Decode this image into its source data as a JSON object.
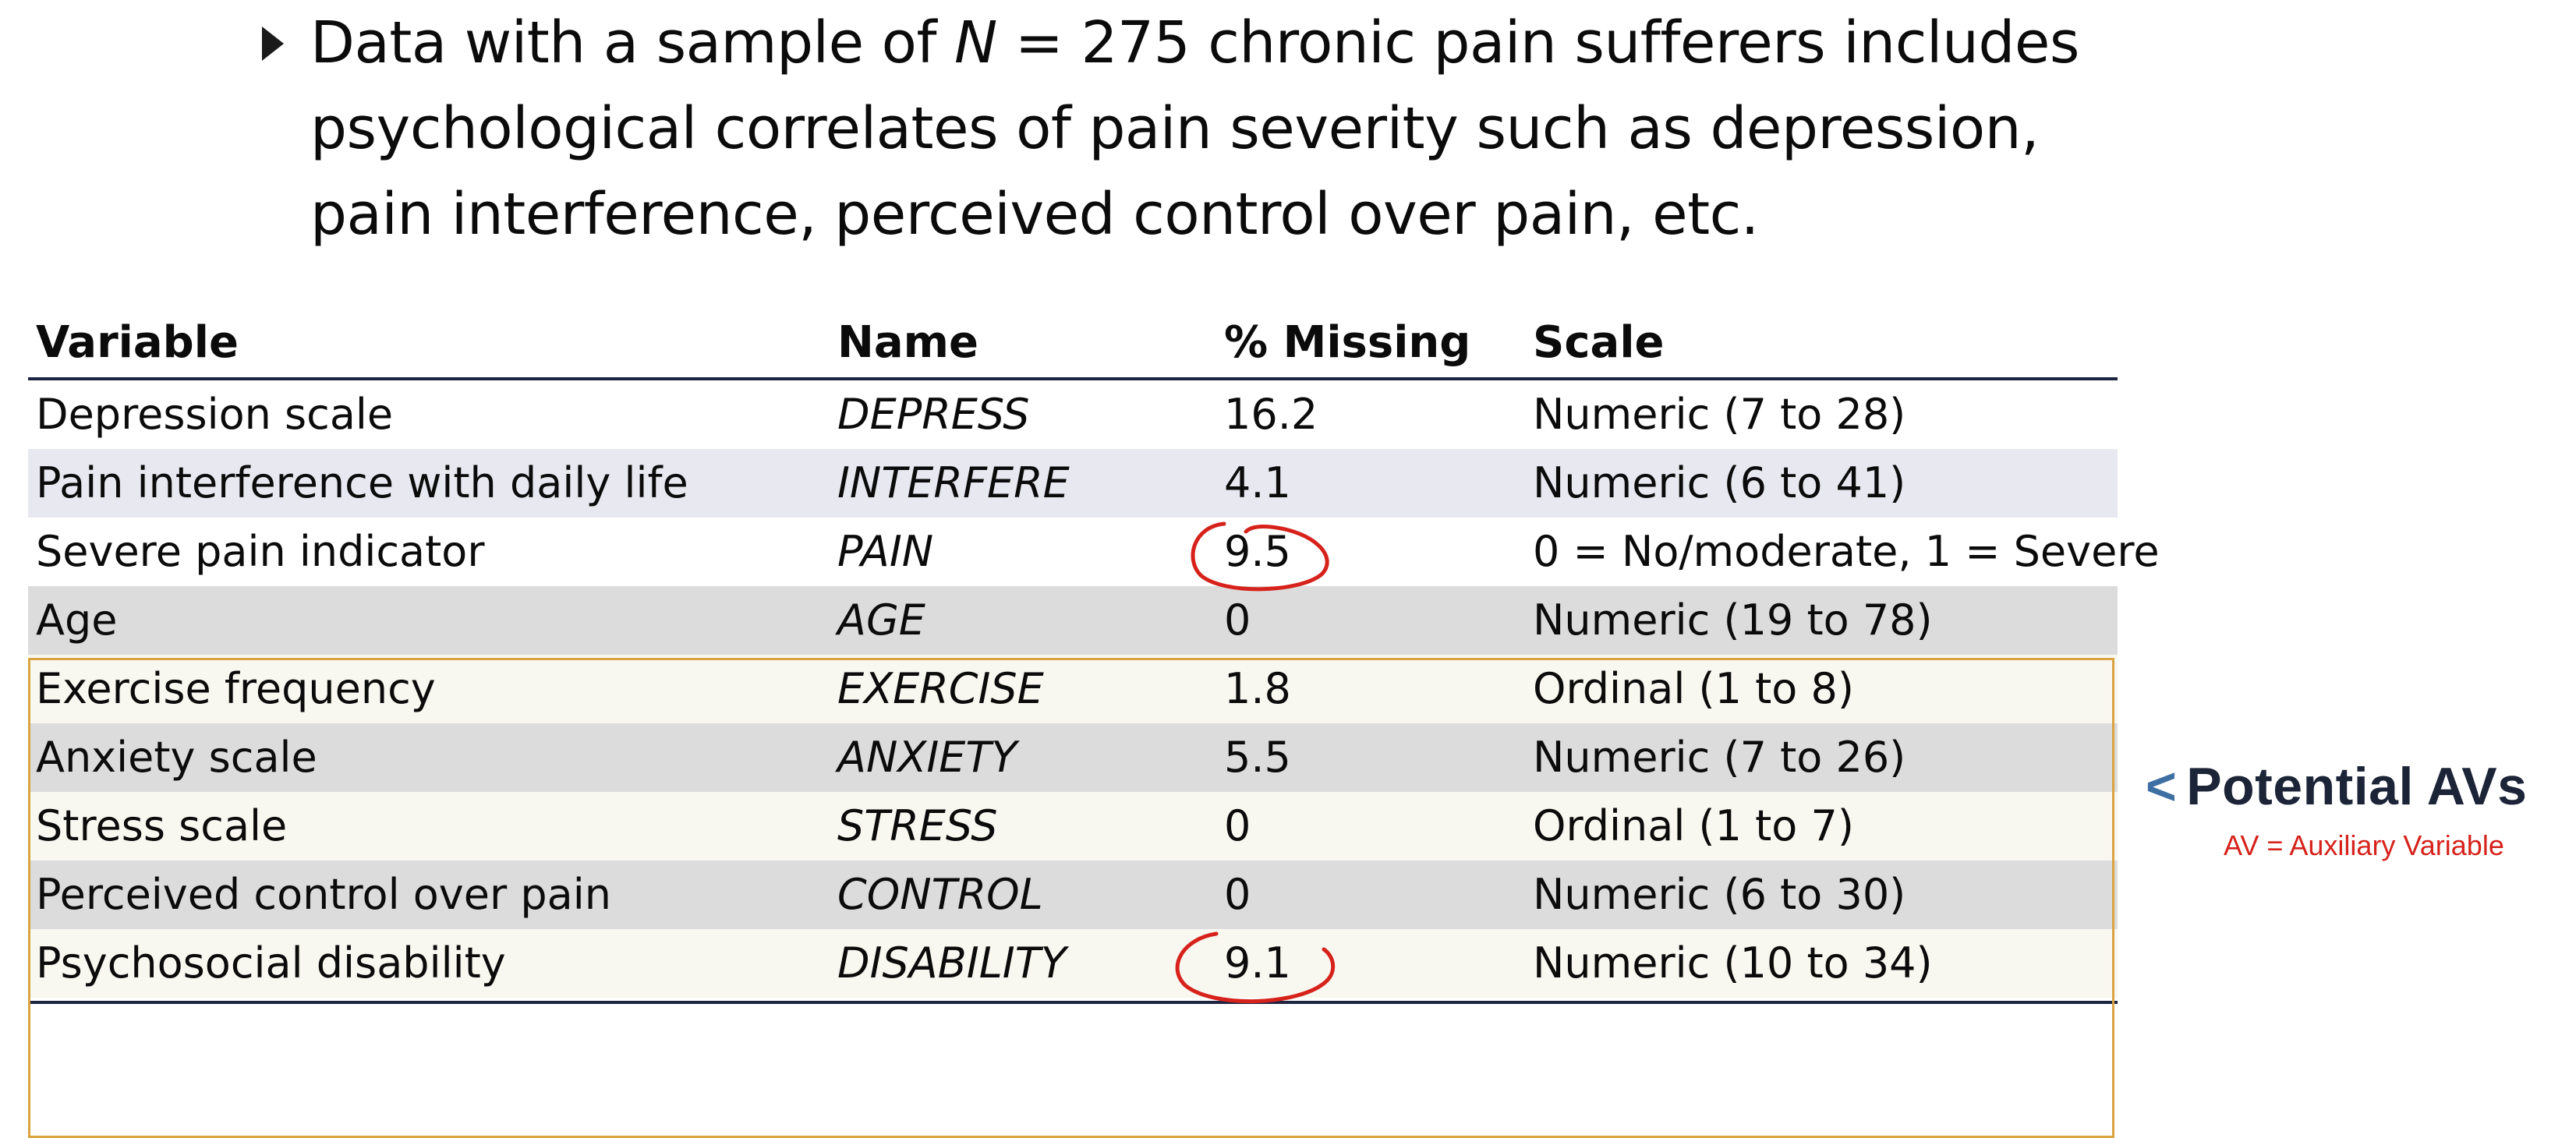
{
  "bullet": {
    "prefix": "Data with a sample of ",
    "n_symbol": "N",
    "suffix": " = 275 chronic pain sufferers includes psychological correlates of pain severity such as depression, pain interference, perceived control over pain, etc."
  },
  "table": {
    "headers": {
      "variable": "Variable",
      "name": "Name",
      "missing": "% Missing",
      "scale": "Scale"
    },
    "rows": [
      {
        "variable": "Depression scale",
        "name": "DEPRESS",
        "missing": "16.2",
        "scale": "Numeric (7 to 28)"
      },
      {
        "variable": "Pain interference with daily life",
        "name": "INTERFERE",
        "missing": "4.1",
        "scale": "Numeric (6 to 41)"
      },
      {
        "variable": "Severe pain indicator",
        "name": "PAIN",
        "missing": "9.5",
        "scale": "0 = No/moderate, 1 = Severe"
      },
      {
        "variable": "Age",
        "name": "AGE",
        "missing": "0",
        "scale": "Numeric (19 to 78)"
      },
      {
        "variable": "Exercise frequency",
        "name": "EXERCISE",
        "missing": "1.8",
        "scale": "Ordinal (1 to 8)"
      },
      {
        "variable": "Anxiety scale",
        "name": "ANXIETY",
        "missing": "5.5",
        "scale": "Numeric (7 to 26)"
      },
      {
        "variable": "Stress scale",
        "name": "STRESS",
        "missing": "0",
        "scale": "Ordinal (1 to 7)"
      },
      {
        "variable": "Perceived control over pain",
        "name": "CONTROL",
        "missing": "0",
        "scale": "Numeric (6 to 30)"
      },
      {
        "variable": "Psychosocial disability",
        "name": "DISABILITY",
        "missing": "9.1",
        "scale": "Numeric (10 to 34)"
      }
    ]
  },
  "side_note": {
    "marker": "<",
    "title": "Potential AVs",
    "subtitle": "AV = Auxiliary Variable"
  },
  "colors": {
    "header_rule": "#1e2340",
    "highlight_box": "#d9a441",
    "annotation": "#d6221b",
    "side_title": "#1c2438",
    "side_marker": "#3e6fa3"
  }
}
